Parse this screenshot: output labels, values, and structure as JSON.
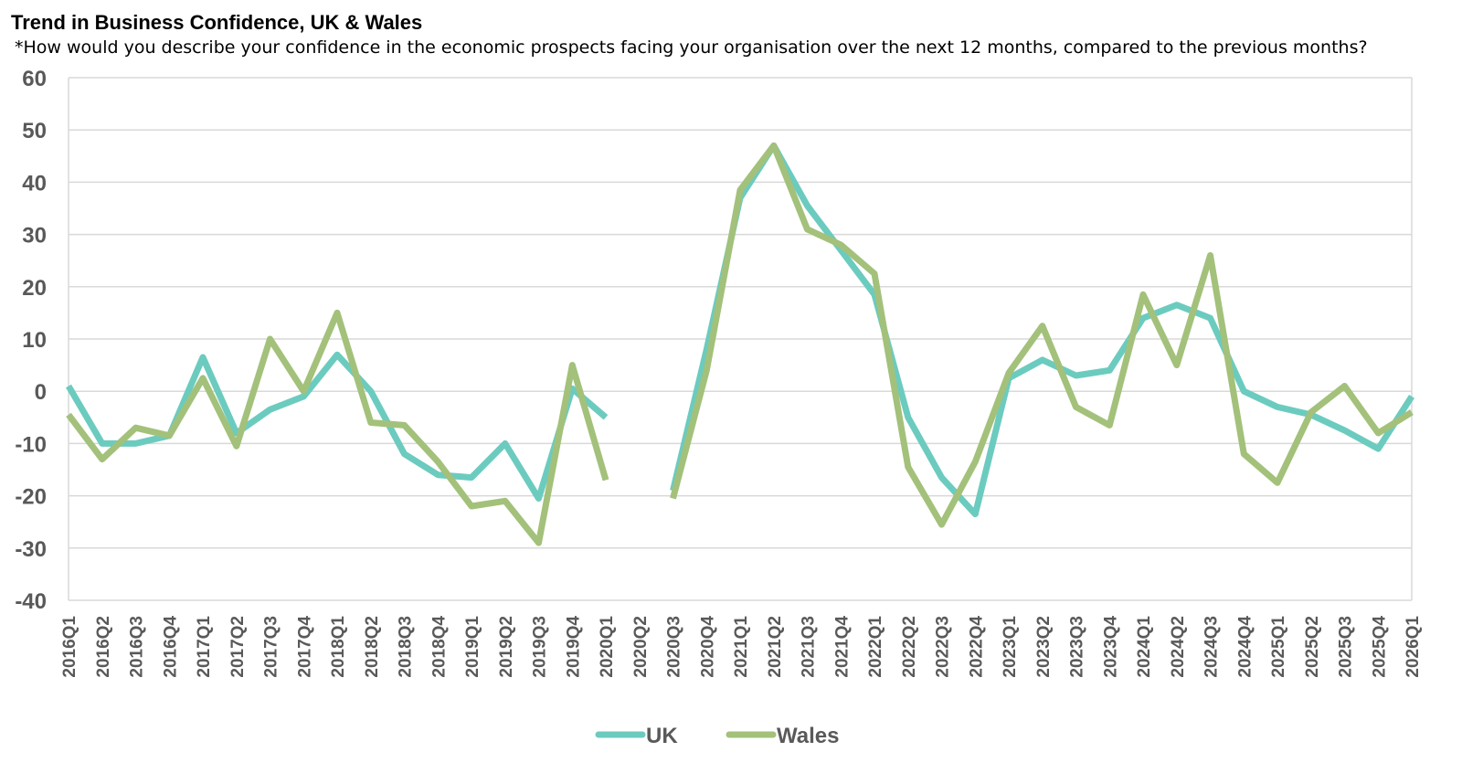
{
  "chart_data": {
    "type": "line",
    "title": "Trend in Business Confidence, UK & Wales",
    "subtitle": "*How would you describe your confidence in the economic prospects facing your organisation over the next 12 months, compared to the previous months?",
    "xlabel": "",
    "ylabel": "",
    "ylim": [
      -40,
      60
    ],
    "yticks": [
      60,
      50,
      40,
      30,
      20,
      10,
      0,
      -10,
      -20,
      -30,
      -40
    ],
    "grid": true,
    "legend_position": "bottom",
    "categories": [
      "2016Q1",
      "2016Q2",
      "2016Q3",
      "2016Q4",
      "2017Q1",
      "2017Q2",
      "2017Q3",
      "2017Q4",
      "2018Q1",
      "2018Q2",
      "2018Q3",
      "2018Q4",
      "2019Q1",
      "2019Q2",
      "2019Q3",
      "2019Q4",
      "2020Q1",
      "2020Q2",
      "2020Q3",
      "2020Q4",
      "2021Q1",
      "2021Q2",
      "2021Q3",
      "2021Q4",
      "2022Q1",
      "2022Q2",
      "2022Q3",
      "2022Q4",
      "2023Q1",
      "2023Q2",
      "2023Q3",
      "2023Q4",
      "2024Q1",
      "2024Q2",
      "2024Q3",
      "2024Q4",
      "2025Q1",
      "2025Q2",
      "2025Q3",
      "2025Q4",
      "2026Q1"
    ],
    "series": [
      {
        "name": "UK",
        "color": "#6ccbbf",
        "values": [
          1,
          -10,
          -10,
          -8.5,
          6.5,
          -8,
          -3.5,
          -1,
          7,
          0,
          -12,
          -16,
          -16.5,
          -10,
          -20.5,
          0.5,
          -5,
          null,
          -19,
          8,
          37,
          47,
          35.5,
          27,
          18.5,
          -5,
          -16.5,
          -23.5,
          2.5,
          6,
          3,
          4,
          14,
          16.5,
          14,
          0,
          -3,
          -4.5,
          -7.5,
          -11,
          -1
        ]
      },
      {
        "name": "Wales",
        "color": "#a3c17a",
        "values": [
          -4.5,
          -13,
          -7,
          -8.5,
          2.5,
          -10.5,
          10,
          0,
          15,
          -6,
          -6.5,
          -13.5,
          -22,
          -21,
          -29,
          5,
          -17,
          null,
          -20.5,
          4,
          38.5,
          47,
          31,
          28,
          22.5,
          -14.5,
          -25.5,
          -13.5,
          3.5,
          12.5,
          -3,
          -6.5,
          18.5,
          5,
          26,
          -12,
          -17.5,
          -4,
          1,
          -8,
          -4
        ]
      }
    ]
  }
}
